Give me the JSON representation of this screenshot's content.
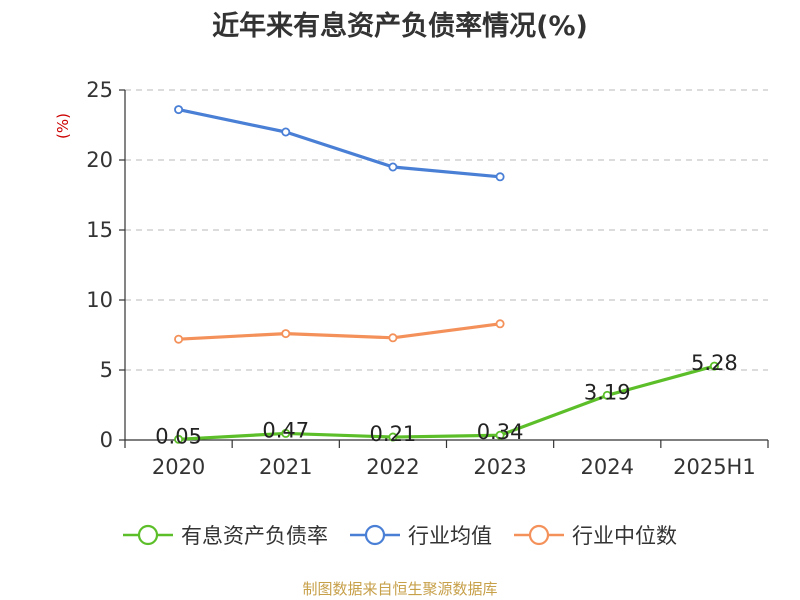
{
  "title": "近年来有息资产负债率情况(%)",
  "source": "制图数据来自恒生聚源数据库",
  "colors": {
    "grid": "#c8c8c8",
    "axis": "#333333",
    "text": "#333333",
    "unit": "#cc0000"
  },
  "chart_data": {
    "type": "line",
    "categories": [
      "2020",
      "2021",
      "2022",
      "2023",
      "2024",
      "2025H1"
    ],
    "ylim": [
      0,
      25
    ],
    "yticks": [
      0,
      5,
      10,
      15,
      20,
      25
    ],
    "ylabel": "(%)",
    "xlabel": "",
    "grid": true,
    "legend_position": "bottom",
    "series": [
      {
        "name": "有息资产负债率",
        "color": "#5cbf2a",
        "values": [
          0.05,
          0.47,
          0.21,
          0.34,
          3.19,
          5.28
        ],
        "labels": [
          "0.05",
          "0.47",
          "0.21",
          "0.34",
          "3.19",
          "5.28"
        ]
      },
      {
        "name": "行业均值",
        "color": "#4a7fd6",
        "values": [
          23.6,
          22.0,
          19.5,
          18.8,
          null,
          null
        ]
      },
      {
        "name": "行业中位数",
        "color": "#f4915a",
        "values": [
          7.2,
          7.6,
          7.3,
          8.3,
          null,
          null
        ]
      }
    ]
  }
}
